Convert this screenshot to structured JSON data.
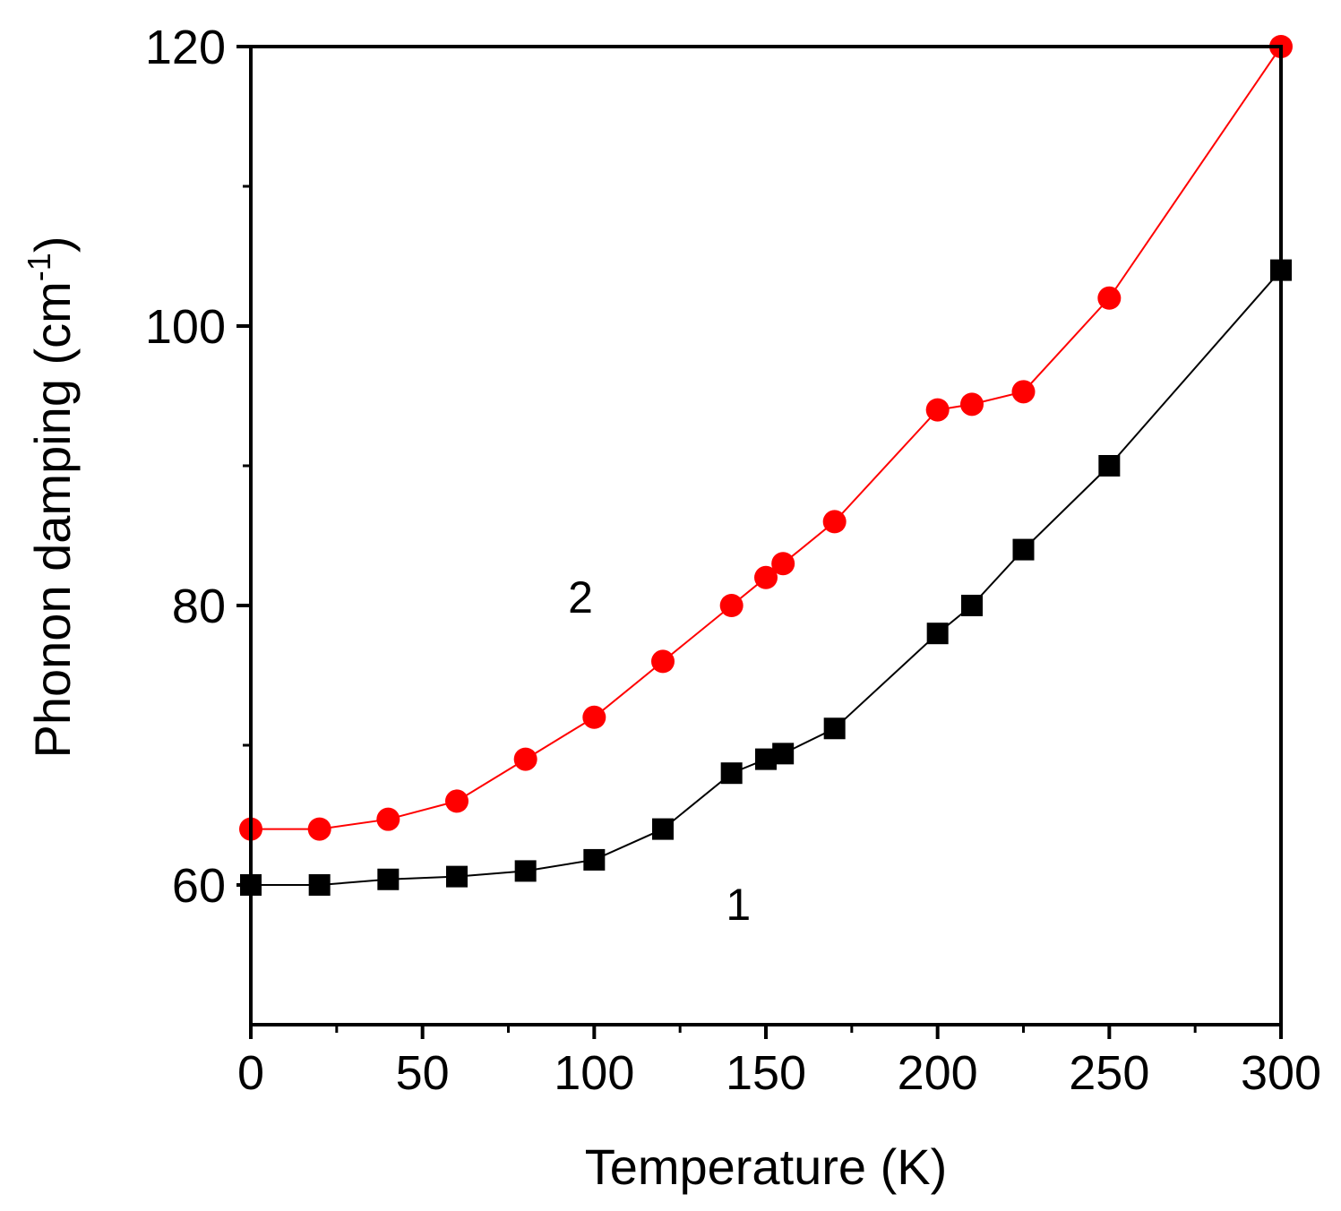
{
  "chart_data": {
    "type": "line",
    "title": "",
    "xlabel": "Temperature (K)",
    "ylabel": "Phonon damping (cm",
    "ylabel_sup": "-1",
    "ylabel_close": ")",
    "xlim": [
      0,
      300
    ],
    "ylim": [
      50,
      120
    ],
    "xticks": [
      0,
      50,
      100,
      150,
      200,
      250,
      300
    ],
    "xticks_minor": [
      25,
      75,
      125,
      175,
      225,
      275
    ],
    "yticks": [
      60,
      80,
      100,
      120
    ],
    "yticks_minor": [
      70,
      90,
      110
    ],
    "x": [
      0,
      20,
      40,
      60,
      80,
      100,
      120,
      140,
      150,
      155,
      170,
      200,
      210,
      225,
      250,
      300
    ],
    "series": [
      {
        "name": "1",
        "color": "#000000",
        "marker": "square",
        "values": [
          60,
          60,
          60.4,
          60.6,
          61,
          61.8,
          64,
          68,
          69,
          69.4,
          71.2,
          78,
          80,
          84,
          90,
          104
        ]
      },
      {
        "name": "2",
        "color": "#ff0000",
        "marker": "circle",
        "values": [
          64,
          64,
          64.7,
          66,
          69,
          72,
          76,
          80,
          82,
          83,
          86,
          94,
          94.4,
          95.3,
          102,
          120
        ]
      }
    ],
    "annotations": [
      {
        "text": "1",
        "x": 142,
        "y": 57.5
      },
      {
        "text": "2",
        "x": 96,
        "y": 79.5
      }
    ],
    "grid": false,
    "legend": "none"
  }
}
